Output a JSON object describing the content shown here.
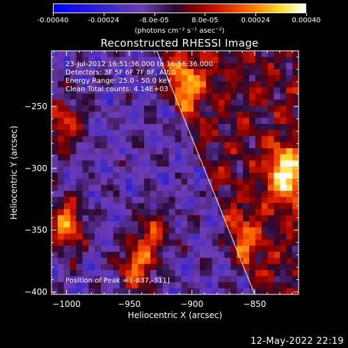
{
  "colorbar": {
    "ticks": [
      "-0.00040",
      "-0.00024",
      "-8.0e-05",
      "8.0e-05",
      "0.00024",
      "0.00040"
    ],
    "unit": "(photons cm⁻² s⁻¹ asec⁻²)",
    "range": [
      -0.0004,
      0.0004
    ]
  },
  "chart_data": {
    "type": "heatmap",
    "title": "Reconstructed RHESSI Image",
    "xlabel": "Heliocentric X (arcsec)",
    "ylabel": "Heliocentric Y (arcsec)",
    "xlim": [
      -1012,
      -815
    ],
    "ylim": [
      -402,
      -205
    ],
    "xticks": [
      -1000,
      -950,
      -900,
      -850
    ],
    "yticks": [
      -250,
      -300,
      -350,
      -400
    ],
    "xtick_labels": [
      "−1000",
      "−950",
      "−900",
      "−850"
    ],
    "ytick_labels": [
      "−250",
      "−300",
      "−350",
      "−400"
    ],
    "limb_line": [
      [
        -928,
        -205
      ],
      [
        -850,
        -402
      ]
    ],
    "bright_sources": [
      {
        "x": -825,
        "y": -305,
        "value": 0.0004
      },
      {
        "x": -1000,
        "y": -345,
        "value": 0.00034
      },
      {
        "x": -945,
        "y": -380,
        "value": 0.0003
      },
      {
        "x": -905,
        "y": -232,
        "value": 0.00028
      },
      {
        "x": -1002,
        "y": -265,
        "value": 0.00026
      },
      {
        "x": -930,
        "y": -352,
        "value": 0.00022
      },
      {
        "x": -860,
        "y": -360,
        "value": 0.0002
      }
    ],
    "annotations": [
      "23-Jul-2012 16:51:36.000 to 16:56:36.000",
      "Detectors: 3F 5F 6F 7F 8F, Att 0",
      "Energy Range: 25.0 - 50.0 keV",
      "Clean     Total counts: 4.14E+03"
    ],
    "peak_label": "Position of Peak = [-837,-311]",
    "grid": false
  },
  "footer": "12-May-2022 22:19"
}
